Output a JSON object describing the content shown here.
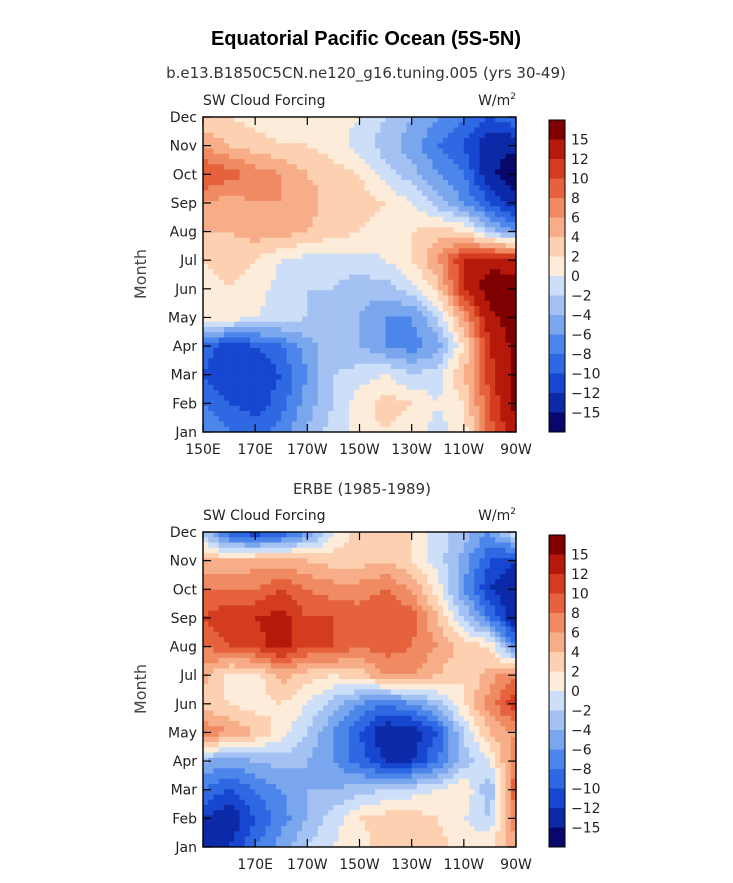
{
  "page": {
    "title": "Equatorial Pacific Ocean (5S-5N)",
    "subtitle": "b.e13.B1850C5CN.ne120_g16.tuning.005 (yrs 30-49)"
  },
  "palette": {
    "colors": [
      "#08086b",
      "#0c2aa8",
      "#1746d0",
      "#2f68e3",
      "#4c86ea",
      "#7aa6ee",
      "#a3c1f3",
      "#cddff8",
      "#fdecd9",
      "#fcd0b0",
      "#f6ad88",
      "#ef8a62",
      "#e5623d",
      "#d33c1f",
      "#b5190b",
      "#7e0000"
    ],
    "labels": [
      "15",
      "12",
      "10",
      "8",
      "6",
      "4",
      "2",
      "0",
      "−2",
      "−4",
      "−6",
      "−8",
      "−10",
      "−12",
      "−15"
    ]
  },
  "chart_data": [
    {
      "type": "heatmap",
      "title": "",
      "left_label": "SW Cloud Forcing",
      "units": "W/m",
      "units_sup": "2",
      "ylabel": "Month",
      "xlabel": "",
      "x_ticks": [
        "150E",
        "170E",
        "170W",
        "150W",
        "130W",
        "110W",
        "90W"
      ],
      "y_ticks": [
        "Jan",
        "Feb",
        "Mar",
        "Apr",
        "May",
        "Jun",
        "Jul",
        "Aug",
        "Sep",
        "Oct",
        "Nov",
        "Dec"
      ],
      "x_range": [
        "150E",
        "90W"
      ],
      "y_range": [
        "Jan",
        "Dec"
      ],
      "x_lon": [
        150,
        160,
        170,
        180,
        190,
        200,
        210,
        220,
        230,
        240,
        250,
        260,
        270
      ],
      "months": [
        "Jan",
        "Feb",
        "Mar",
        "Apr",
        "May",
        "Jun",
        "Jul",
        "Aug",
        "Sep",
        "Oct",
        "Nov",
        "Dec"
      ],
      "values": [
        [
          -6,
          -8,
          -9,
          -7,
          -4,
          -1,
          1,
          2,
          1,
          -1,
          1,
          9,
          14
        ],
        [
          -8,
          -10,
          -11,
          -9,
          -5,
          -2,
          1,
          3,
          2,
          0,
          2,
          10,
          16
        ],
        [
          -10,
          -12,
          -12,
          -10,
          -6,
          -2,
          -1,
          0,
          -2,
          -1,
          4,
          11,
          16
        ],
        [
          -9,
          -11,
          -10,
          -8,
          -5,
          -3,
          -4,
          -6,
          -7,
          -5,
          2,
          12,
          16
        ],
        [
          1,
          1,
          0,
          -1,
          -2,
          -3,
          -4,
          -6,
          -6,
          -2,
          6,
          14,
          17
        ],
        [
          1,
          2,
          1,
          -1,
          -2,
          -2,
          -3,
          -3,
          -1,
          3,
          12,
          17,
          17
        ],
        [
          2,
          3,
          2,
          0,
          -1,
          -1,
          -1,
          0,
          2,
          6,
          12,
          14,
          13
        ],
        [
          4,
          4,
          5,
          5,
          4,
          3,
          2,
          1,
          2,
          3,
          2,
          -3,
          -6
        ],
        [
          6,
          5,
          6,
          6,
          5,
          3,
          3,
          2,
          0,
          -3,
          -6,
          -10,
          -14
        ],
        [
          10,
          9,
          7,
          6,
          4,
          3,
          2,
          -1,
          -3,
          -6,
          -8,
          -14,
          -18
        ],
        [
          6,
          4,
          3,
          2,
          2,
          1,
          -1,
          -3,
          -5,
          -8,
          -10,
          -14,
          -14
        ],
        [
          2,
          2,
          1,
          1,
          0,
          1,
          0,
          -2,
          -4,
          -6,
          -8,
          -10,
          -8
        ]
      ]
    },
    {
      "type": "heatmap",
      "title": "ERBE (1985-1989)",
      "left_label": "SW Cloud Forcing",
      "units": "W/m",
      "units_sup": "2",
      "ylabel": "Month",
      "xlabel": "",
      "x_ticks": [
        "170E",
        "170W",
        "150W",
        "130W",
        "110W",
        "90W"
      ],
      "y_ticks": [
        "Jan",
        "Feb",
        "Mar",
        "Apr",
        "May",
        "Jun",
        "Jul",
        "Aug",
        "Sep",
        "Oct",
        "Nov",
        "Dec"
      ],
      "x_range": [
        "150E",
        "90W"
      ],
      "y_range": [
        "Jan",
        "Dec"
      ],
      "x_lon": [
        150,
        160,
        170,
        180,
        190,
        200,
        210,
        220,
        230,
        240,
        250,
        260,
        270
      ],
      "months": [
        "Jan",
        "Feb",
        "Mar",
        "Apr",
        "May",
        "Jun",
        "Jul",
        "Aug",
        "Sep",
        "Oct",
        "Nov",
        "Dec"
      ],
      "values": [
        [
          -14,
          -12,
          -8,
          -5,
          -2,
          0,
          1,
          3,
          4,
          3,
          1,
          2,
          5
        ],
        [
          -12,
          -14,
          -10,
          -7,
          -4,
          -1,
          2,
          3,
          3,
          2,
          0,
          -2,
          8
        ],
        [
          -8,
          -10,
          -8,
          -6,
          -4,
          -4,
          -3,
          -2,
          -1,
          0,
          2,
          -4,
          10
        ],
        [
          -4,
          -5,
          -4,
          -3,
          -4,
          -6,
          -9,
          -12,
          -12,
          -8,
          -3,
          0,
          8
        ],
        [
          8,
          6,
          4,
          1,
          -2,
          -6,
          -10,
          -14,
          -14,
          -10,
          -2,
          4,
          6
        ],
        [
          3,
          2,
          1,
          2,
          0,
          -3,
          -6,
          -8,
          -6,
          -3,
          2,
          7,
          12
        ],
        [
          5,
          1,
          1,
          5,
          3,
          2,
          3,
          6,
          6,
          4,
          2,
          5,
          8
        ],
        [
          8,
          10,
          11,
          13,
          10,
          10,
          8,
          9,
          8,
          6,
          3,
          2,
          -8
        ],
        [
          10,
          12,
          12,
          13,
          10,
          10,
          9,
          10,
          9,
          4,
          -2,
          -8,
          -14
        ],
        [
          8,
          8,
          8,
          10,
          8,
          7,
          7,
          8,
          6,
          1,
          -6,
          -12,
          -14
        ],
        [
          4,
          4,
          5,
          5,
          4,
          3,
          3,
          4,
          2,
          -1,
          -5,
          -10,
          -12
        ],
        [
          -2,
          -10,
          -12,
          -10,
          -6,
          0,
          3,
          4,
          2,
          -1,
          -3,
          -6,
          0
        ]
      ]
    }
  ]
}
